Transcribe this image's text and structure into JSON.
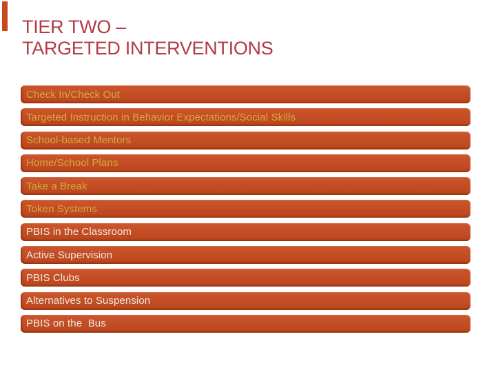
{
  "slide": {
    "title": {
      "line1": "TIER TWO –",
      "line2": "TARGETED INTERVENTIONS"
    },
    "interventions": [
      {
        "label": "Check In/Check Out",
        "text_tone": "gold"
      },
      {
        "label": "Targeted Instruction in Behavior Expectations/Social Skills",
        "text_tone": "gold"
      },
      {
        "label": "School-based Mentors",
        "text_tone": "gold"
      },
      {
        "label": "Home/School Plans",
        "text_tone": "gold"
      },
      {
        "label": "Take a Break",
        "text_tone": "gold"
      },
      {
        "label": "Token Systems",
        "text_tone": "gold"
      },
      {
        "label": "PBIS in the Classroom",
        "text_tone": "ivory"
      },
      {
        "label": "Active Supervision",
        "text_tone": "ivory"
      },
      {
        "label": "PBIS Clubs",
        "text_tone": "ivory"
      },
      {
        "label": "Alternatives to Suspension",
        "text_tone": "ivory"
      },
      {
        "label": "PBIS on the  Bus",
        "text_tone": "ivory"
      }
    ]
  },
  "colors": {
    "background": "#FFFFFF",
    "title_text": "#B23B44",
    "bar_fill": "#C7491D",
    "bar_bevel_dark": "#7A280A",
    "label_gold": "#D4AC3A",
    "label_ivory": "#F0EAE0"
  }
}
